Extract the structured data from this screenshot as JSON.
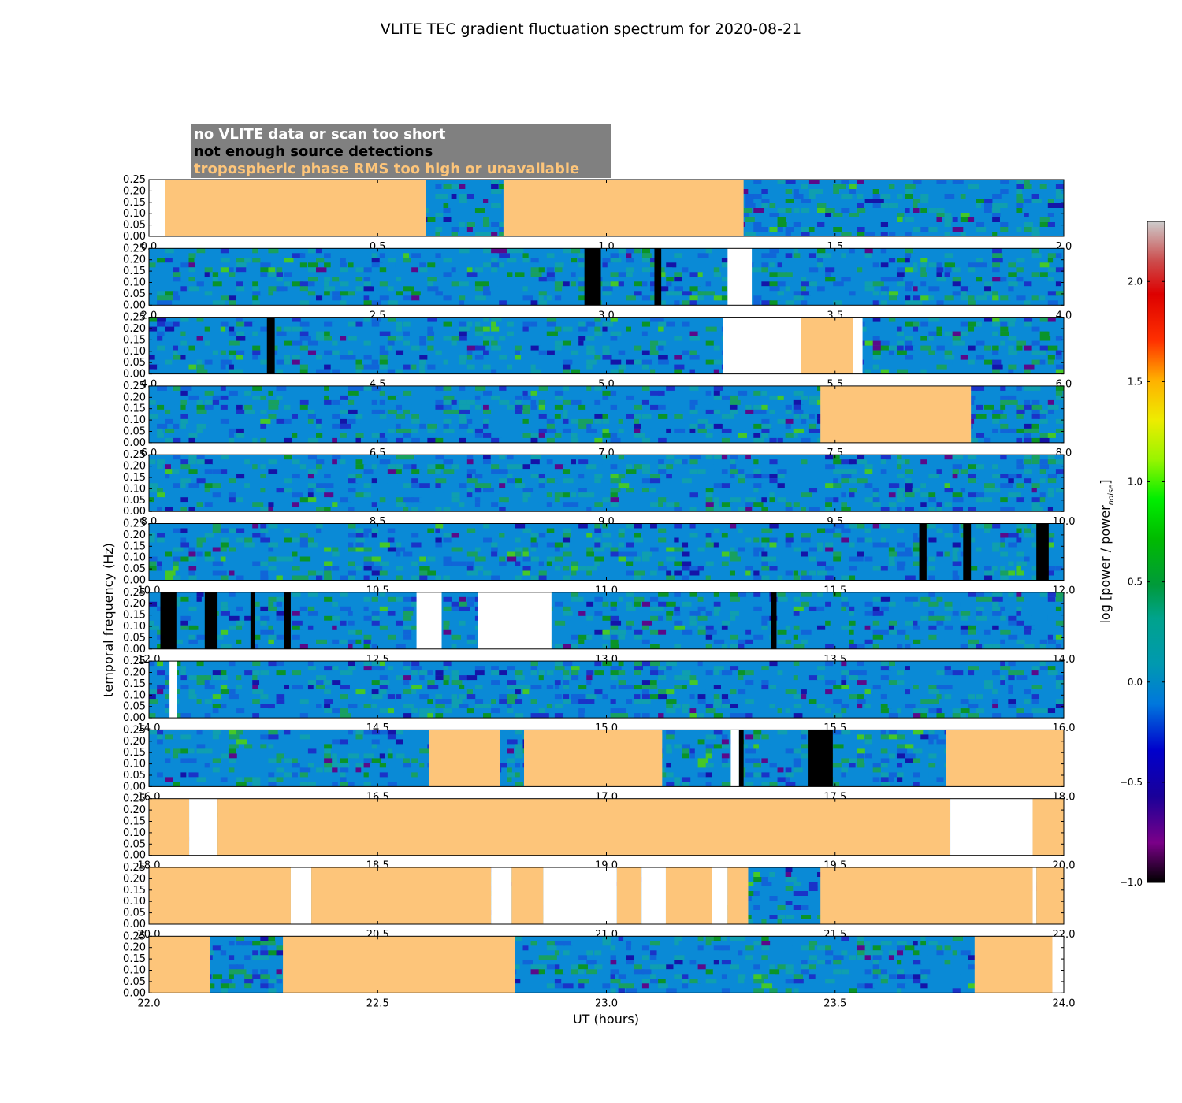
{
  "chart_data": {
    "type": "heatmap",
    "title": "VLITE TEC gradient fluctuation spectrum for 2020-08-21",
    "xlabel": "UT (hours)",
    "ylabel": "temporal frequency (Hz)",
    "ylim": [
      0,
      0.25
    ],
    "yticks": [
      "0.00",
      "0.05",
      "0.10",
      "0.15",
      "0.20",
      "0.25"
    ],
    "legend": [
      {
        "label": "no VLITE data or scan too short",
        "color": "#ffffff"
      },
      {
        "label": "not enough source detections",
        "color": "#000000"
      },
      {
        "label": "tropospheric phase RMS too high or unavailable",
        "color": "#fdc57a"
      }
    ],
    "colorbar": {
      "label": "log [power / power",
      "label_subscript": "noise",
      "label_close": "]",
      "range": [
        -1.0,
        2.3
      ],
      "ticks": [
        {
          "value": -1.0,
          "label": "−1.0"
        },
        {
          "value": -0.5,
          "label": "−0.5"
        },
        {
          "value": 0.0,
          "label": "0.0"
        },
        {
          "value": 0.5,
          "label": "0.5"
        },
        {
          "value": 1.0,
          "label": "1.0"
        },
        {
          "value": 1.5,
          "label": "1.5"
        },
        {
          "value": 2.0,
          "label": "2.0"
        }
      ],
      "colormap": "nipy_spectral"
    },
    "panels": [
      {
        "x_range": [
          0,
          2
        ],
        "xticks": [
          "0.0",
          "0.5",
          "1.0",
          "1.5",
          "2.0"
        ],
        "flags": [
          {
            "start": 0.0,
            "end": 0.035,
            "flag": "no_data"
          },
          {
            "start": 0.035,
            "end": 0.605,
            "flag": "tropo"
          },
          {
            "start": 0.775,
            "end": 1.3,
            "flag": "tropo"
          }
        ]
      },
      {
        "x_range": [
          2,
          4
        ],
        "xticks": [
          "2.0",
          "2.5",
          "3.0",
          "3.5",
          "4.0"
        ],
        "flags": [
          {
            "start": 2.952,
            "end": 2.988,
            "flag": "few_detections"
          },
          {
            "start": 3.105,
            "end": 3.12,
            "flag": "few_detections"
          },
          {
            "start": 3.265,
            "end": 3.318,
            "flag": "no_data"
          }
        ]
      },
      {
        "x_range": [
          4,
          6
        ],
        "xticks": [
          "4.0",
          "4.5",
          "5.0",
          "5.5",
          "6.0"
        ],
        "flags": [
          {
            "start": 4.258,
            "end": 4.275,
            "flag": "few_detections"
          },
          {
            "start": 5.255,
            "end": 5.425,
            "flag": "no_data"
          },
          {
            "start": 5.425,
            "end": 5.54,
            "flag": "tropo"
          },
          {
            "start": 5.54,
            "end": 5.56,
            "flag": "no_data"
          }
        ]
      },
      {
        "x_range": [
          6,
          8
        ],
        "xticks": [
          "6.0",
          "6.5",
          "7.0",
          "7.5",
          "8.0"
        ],
        "flags": [
          {
            "start": 7.468,
            "end": 7.797,
            "flag": "tropo"
          }
        ]
      },
      {
        "x_range": [
          8,
          10
        ],
        "xticks": [
          "8.0",
          "8.5",
          "9.0",
          "9.5",
          "10.0"
        ],
        "flags": []
      },
      {
        "x_range": [
          10,
          12
        ],
        "xticks": [
          "10.0",
          "10.5",
          "11.0",
          "11.5",
          "12.0"
        ],
        "flags": [
          {
            "start": 11.684,
            "end": 11.7,
            "flag": "few_detections"
          },
          {
            "start": 11.78,
            "end": 11.797,
            "flag": "few_detections"
          },
          {
            "start": 11.94,
            "end": 11.967,
            "flag": "few_detections"
          }
        ]
      },
      {
        "x_range": [
          12,
          14
        ],
        "xticks": [
          "12.0",
          "12.5",
          "13.0",
          "13.5",
          "14.0"
        ],
        "flags": [
          {
            "start": 12.025,
            "end": 12.06,
            "flag": "few_detections"
          },
          {
            "start": 12.122,
            "end": 12.15,
            "flag": "few_detections"
          },
          {
            "start": 12.222,
            "end": 12.232,
            "flag": "few_detections"
          },
          {
            "start": 12.295,
            "end": 12.31,
            "flag": "few_detections"
          },
          {
            "start": 12.585,
            "end": 12.64,
            "flag": "no_data"
          },
          {
            "start": 12.72,
            "end": 12.88,
            "flag": "no_data"
          },
          {
            "start": 13.36,
            "end": 13.372,
            "flag": "few_detections"
          }
        ]
      },
      {
        "x_range": [
          14,
          16
        ],
        "xticks": [
          "14.0",
          "14.5",
          "15.0",
          "15.5",
          "16.0"
        ],
        "flags": [
          {
            "start": 14.045,
            "end": 14.062,
            "flag": "no_data"
          }
        ]
      },
      {
        "x_range": [
          16,
          18
        ],
        "xticks": [
          "16.0",
          "16.5",
          "17.0",
          "17.5",
          "18.0"
        ],
        "flags": [
          {
            "start": 16.613,
            "end": 16.767,
            "flag": "tropo"
          },
          {
            "start": 16.82,
            "end": 17.122,
            "flag": "tropo"
          },
          {
            "start": 17.272,
            "end": 17.29,
            "flag": "no_data"
          },
          {
            "start": 17.29,
            "end": 17.3,
            "flag": "few_detections"
          },
          {
            "start": 17.442,
            "end": 17.495,
            "flag": "few_detections"
          },
          {
            "start": 17.743,
            "end": 18.0,
            "flag": "tropo"
          }
        ]
      },
      {
        "x_range": [
          18,
          20
        ],
        "xticks": [
          "18.0",
          "18.5",
          "19.0",
          "19.5",
          "20.0"
        ],
        "flags": [
          {
            "start": 18.0,
            "end": 18.088,
            "flag": "tropo"
          },
          {
            "start": 18.088,
            "end": 18.15,
            "flag": "no_data"
          },
          {
            "start": 18.15,
            "end": 19.752,
            "flag": "tropo"
          },
          {
            "start": 19.752,
            "end": 19.932,
            "flag": "no_data"
          },
          {
            "start": 19.932,
            "end": 20.0,
            "flag": "tropo"
          }
        ]
      },
      {
        "x_range": [
          20,
          22
        ],
        "xticks": [
          "20.0",
          "20.5",
          "21.0",
          "21.5",
          "22.0"
        ],
        "flags": [
          {
            "start": 20.0,
            "end": 20.31,
            "flag": "tropo"
          },
          {
            "start": 20.31,
            "end": 20.355,
            "flag": "no_data"
          },
          {
            "start": 20.355,
            "end": 20.748,
            "flag": "tropo"
          },
          {
            "start": 20.748,
            "end": 20.793,
            "flag": "no_data"
          },
          {
            "start": 20.793,
            "end": 20.862,
            "flag": "tropo"
          },
          {
            "start": 20.862,
            "end": 21.023,
            "flag": "no_data"
          },
          {
            "start": 21.023,
            "end": 21.077,
            "flag": "tropo"
          },
          {
            "start": 21.077,
            "end": 21.13,
            "flag": "no_data"
          },
          {
            "start": 21.13,
            "end": 21.23,
            "flag": "tropo"
          },
          {
            "start": 21.23,
            "end": 21.265,
            "flag": "no_data"
          },
          {
            "start": 21.265,
            "end": 21.31,
            "flag": "tropo"
          },
          {
            "start": 21.468,
            "end": 21.932,
            "flag": "tropo"
          },
          {
            "start": 21.932,
            "end": 21.94,
            "flag": "no_data"
          },
          {
            "start": 21.94,
            "end": 22.0,
            "flag": "tropo"
          }
        ]
      },
      {
        "x_range": [
          22,
          24
        ],
        "xticks": [
          "22.0",
          "22.5",
          "23.0",
          "23.5",
          "24.0"
        ],
        "flags": [
          {
            "start": 22.0,
            "end": 22.133,
            "flag": "tropo"
          },
          {
            "start": 22.293,
            "end": 22.8,
            "flag": "tropo"
          },
          {
            "start": 23.805,
            "end": 23.975,
            "flag": "tropo"
          },
          {
            "start": 23.975,
            "end": 24.0,
            "flag": "no_data"
          }
        ]
      }
    ]
  }
}
